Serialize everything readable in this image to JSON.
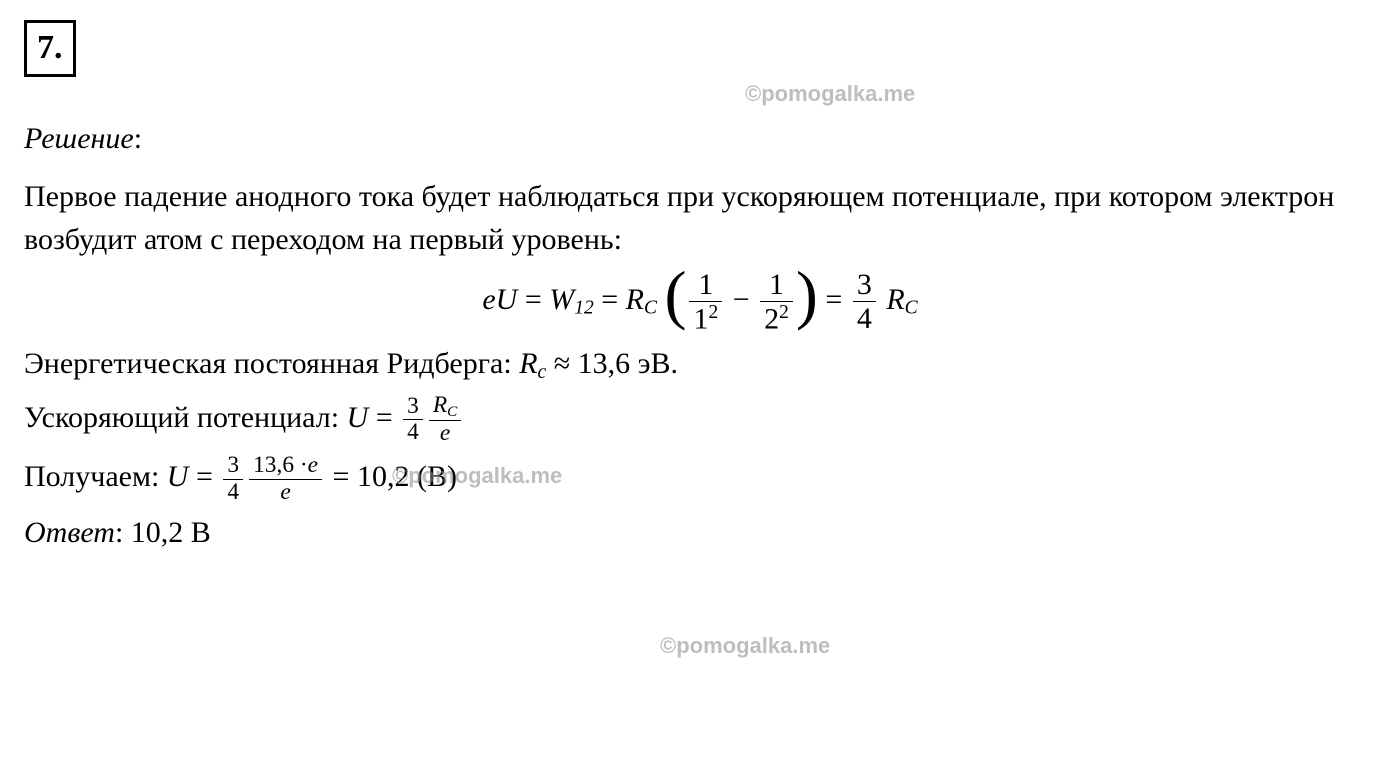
{
  "colors": {
    "background": "#ffffff",
    "text": "#000000",
    "watermark": "#8a8a8a",
    "border": "#000000"
  },
  "typography": {
    "font_family": "Times New Roman",
    "base_fontsize_pt": 22,
    "qnum_fontsize_pt": 26,
    "watermark_fontsize_pt": 16,
    "watermark_font_family": "Arial"
  },
  "question_number": "7.",
  "watermark_text": "©pomogalka.me",
  "heading": "Решение",
  "heading_suffix": ":",
  "paragraph1": "Первое падение анодного тока будет наблюдаться при ускоряющем потенциале, при котором электрон возбудит атом с переходом на первый уровень:",
  "main_equation": {
    "lhs_var": "eU",
    "eq": " = ",
    "W_base": "W",
    "W_sub": "12",
    "R_base": "R",
    "R_sub": "C",
    "frac1_num": "1",
    "frac1_den_base": "1",
    "frac1_den_exp": "2",
    "minus": " − ",
    "frac2_num": "1",
    "frac2_den_base": "2",
    "frac2_den_exp": "2",
    "result_frac_num": "3",
    "result_frac_den": "4"
  },
  "line_rydberg_prefix": "Энергетическая постоянная Ридберга: ",
  "rydberg": {
    "R_base": "R",
    "R_sub": "c",
    "approx": " ≈ ",
    "value": "13,6",
    "unit": " эВ."
  },
  "line_potential_prefix": "Ускоряющий потенциал: ",
  "potential_eq": {
    "U": "U",
    "eq": " = ",
    "frac34_num": "3",
    "frac34_den": "4",
    "fracRe_num_R": "R",
    "fracRe_num_sub": "C",
    "fracRe_den": "e"
  },
  "line_result_prefix": "Получаем: ",
  "result_eq": {
    "U": "U",
    "eq": " = ",
    "frac34_num": "3",
    "frac34_den": "4",
    "big_num_val": "13,6 ",
    "big_num_dot": "·",
    "big_num_e": "e",
    "big_den": "e",
    "equals_val": " = 10,2 ",
    "unit_paren": "(В)"
  },
  "answer_label": "Ответ",
  "answer_colon": ": ",
  "answer_value": "10,2 В"
}
